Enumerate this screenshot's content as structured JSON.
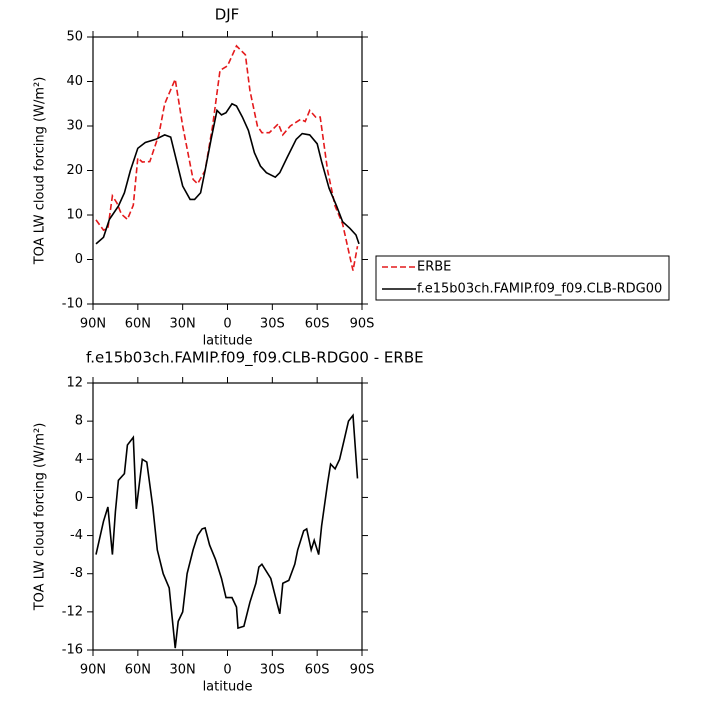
{
  "chart_data": [
    {
      "type": "line",
      "title": "DJF",
      "x_label": "latitude",
      "y_label": "TOA LW cloud forcing (W/m²)",
      "xlim": [
        90,
        -90
      ],
      "xticks": [
        {
          "value": 90,
          "label": "90N"
        },
        {
          "value": 60,
          "label": "60N"
        },
        {
          "value": 30,
          "label": "30N"
        },
        0,
        {
          "value": -30,
          "label": "30S"
        },
        {
          "value": -60,
          "label": "60S"
        },
        {
          "value": -90,
          "label": "90S"
        }
      ],
      "ylim": [
        -10,
        50
      ],
      "yticks": [
        -10,
        0,
        10,
        20,
        30,
        40,
        50
      ],
      "legend": "right",
      "series": [
        {
          "name": "ERBE",
          "color": "#e41a1c",
          "style": "dashed",
          "x": [
            88,
            83,
            80,
            77,
            74,
            71,
            67,
            63,
            60,
            57,
            52,
            46,
            42,
            35,
            30,
            23,
            20,
            15,
            10,
            5,
            0,
            -6,
            -12,
            -15,
            -20,
            -23,
            -28,
            -34,
            -37,
            -42,
            -49,
            -52,
            -55,
            -59,
            -62,
            -67,
            -72,
            -77,
            -81,
            -84,
            -87
          ],
          "values": [
            8.9,
            6.6,
            7,
            14.3,
            12.7,
            10.2,
            9,
            12.2,
            22.8,
            21.9,
            22,
            28,
            35,
            40.5,
            30,
            18,
            17,
            20,
            30,
            42.5,
            43.5,
            48,
            46,
            38,
            30,
            28.5,
            28.5,
            30.5,
            28,
            30,
            31.5,
            31,
            33.5,
            32,
            32,
            20,
            12,
            8,
            2,
            -2.5,
            3
          ]
        },
        {
          "name": "f.e15b03ch.FAMIP.f09_f09.CLB-RDG00",
          "color": "#000000",
          "style": "solid",
          "x": [
            88,
            83,
            79,
            73,
            69,
            65,
            60,
            55,
            48,
            42,
            38,
            34,
            30,
            25,
            22,
            18,
            15,
            11,
            7,
            4,
            1,
            -3,
            -6,
            -10,
            -14,
            -18,
            -22,
            -26,
            -32,
            -35,
            -40,
            -46,
            -50,
            -55,
            -60,
            -63,
            -68,
            -73,
            -77,
            -82,
            -86,
            -88
          ],
          "values": [
            3.5,
            5,
            9,
            12,
            15,
            20,
            25,
            26.3,
            27,
            28,
            27.5,
            22,
            16.5,
            13.5,
            13.5,
            15,
            20,
            27,
            33.5,
            32.5,
            33,
            35,
            34.5,
            32,
            29,
            24,
            21,
            19.5,
            18.5,
            19.5,
            23,
            27,
            28.3,
            28,
            26,
            22,
            16,
            12,
            8.5,
            7,
            5.5,
            3.5
          ]
        }
      ]
    },
    {
      "type": "line",
      "title": "f.e15b03ch.FAMIP.f09_f09.CLB-RDG00 - ERBE",
      "x_label": "latitude",
      "y_label": "TOA LW cloud forcing (W/m²)",
      "xlim": [
        90,
        -90
      ],
      "xticks": [
        {
          "value": 90,
          "label": "90N"
        },
        {
          "value": 60,
          "label": "60N"
        },
        {
          "value": 30,
          "label": "30N"
        },
        0,
        {
          "value": -30,
          "label": "30S"
        },
        {
          "value": -60,
          "label": "60S"
        },
        {
          "value": -90,
          "label": "90S"
        }
      ],
      "ylim": [
        -16,
        12
      ],
      "yticks": [
        -16,
        -12,
        -8,
        -4,
        0,
        4,
        8,
        12
      ],
      "series": [
        {
          "color": "#000000",
          "style": "solid",
          "x": [
            88,
            83,
            80,
            77,
            75,
            73,
            69,
            67,
            63,
            61,
            57,
            54,
            50,
            47,
            43,
            39,
            35,
            33,
            30,
            27,
            23,
            20,
            17,
            15,
            12,
            8,
            4,
            1,
            -3,
            -6,
            -7,
            -11,
            -15,
            -19,
            -21,
            -23,
            -29,
            -33,
            -35,
            -37,
            -41,
            -45,
            -47,
            -51,
            -53,
            -56,
            -58,
            -61,
            -63,
            -67,
            -69,
            -72,
            -75,
            -78,
            -81,
            -84,
            -87
          ],
          "values": [
            -6,
            -2.5,
            -1,
            -6,
            -1.5,
            1.8,
            2.5,
            5.5,
            6.3,
            -1.2,
            4,
            3.7,
            -1,
            -5.5,
            -8,
            -9.5,
            -15.8,
            -13,
            -12,
            -8,
            -5.5,
            -4,
            -3.3,
            -3.2,
            -5,
            -6.5,
            -8.5,
            -10.5,
            -10.5,
            -11.5,
            -13.7,
            -13.5,
            -11,
            -9,
            -7.3,
            -7,
            -8.5,
            -11,
            -12.2,
            -9,
            -8.7,
            -7,
            -5.5,
            -3.5,
            -3.3,
            -5.5,
            -4.5,
            -6,
            -3,
            1.5,
            3.5,
            3,
            4,
            6,
            8,
            8.6,
            2
          ]
        }
      ]
    }
  ]
}
